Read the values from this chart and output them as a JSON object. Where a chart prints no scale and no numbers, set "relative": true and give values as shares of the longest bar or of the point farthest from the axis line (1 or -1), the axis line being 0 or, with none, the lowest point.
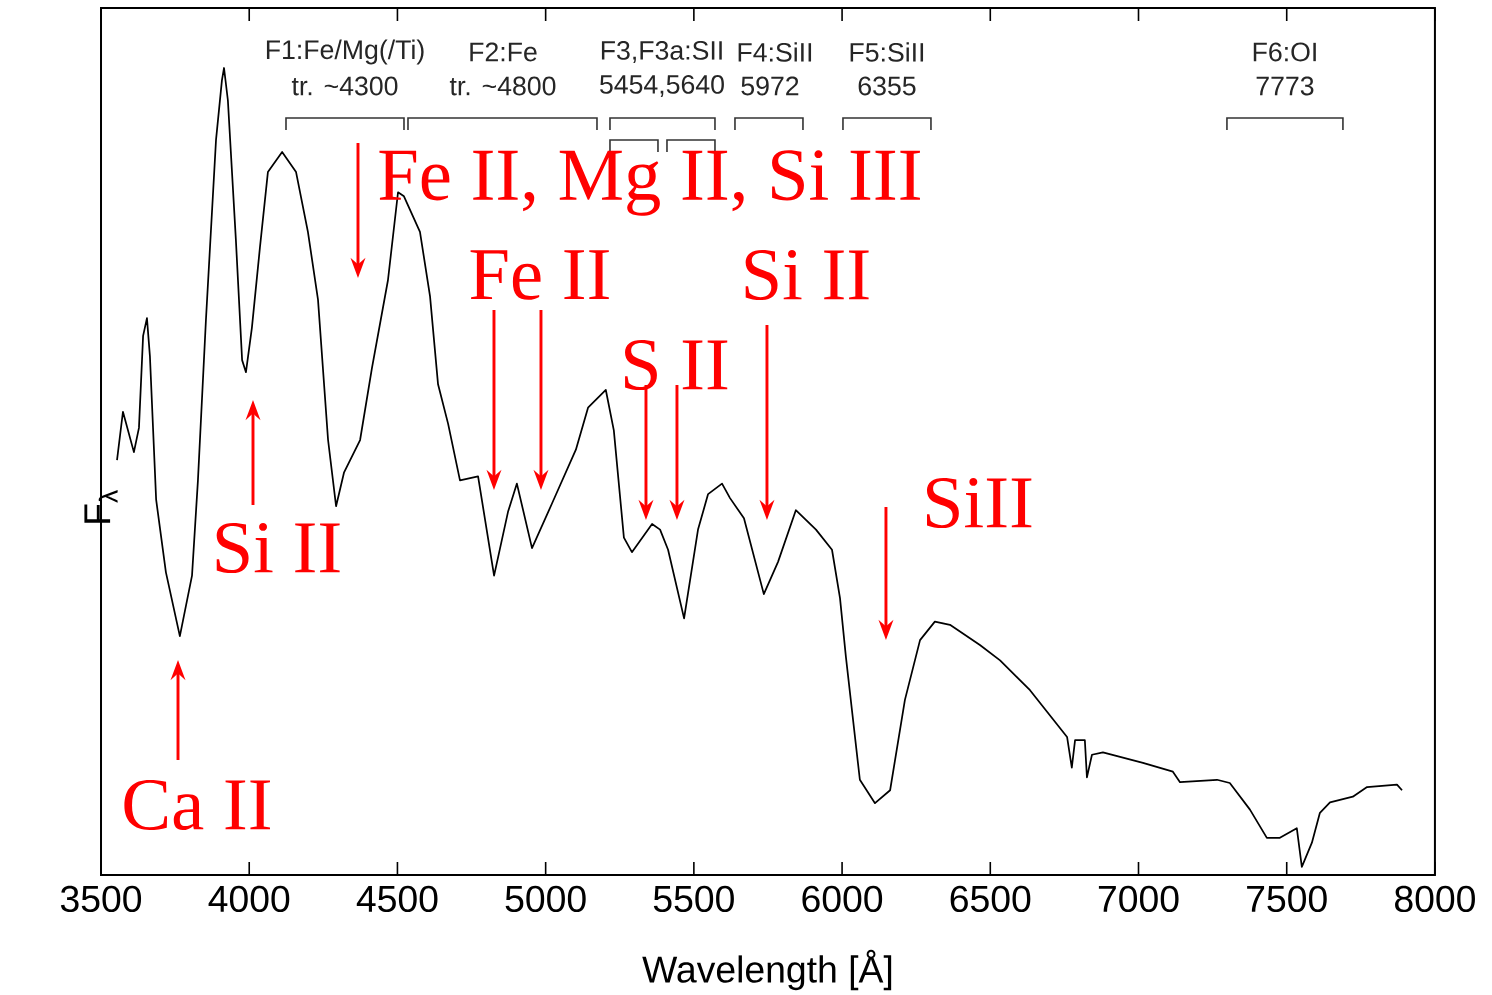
{
  "chart_data": {
    "type": "line",
    "relative": true,
    "xlabel": "Wavelength [Å]",
    "ylabel": "F$_{λ}$",
    "xlim": [
      3500,
      8000
    ],
    "xticks": [
      3500,
      4000,
      4500,
      5000,
      5500,
      6000,
      6500,
      7000,
      7500,
      8000
    ],
    "series": [
      {
        "color": "#000000",
        "x": [
          3554,
          3574,
          3611,
          3628,
          3642,
          3655,
          3665,
          3686,
          3719,
          3766,
          3807,
          3827,
          3854,
          3888,
          3908,
          3915,
          3928,
          3955,
          3976,
          3989,
          4009,
          4036,
          4063,
          4111,
          4158,
          4198,
          4232,
          4266,
          4293,
          4320,
          4374,
          4414,
          4468,
          4502,
          4522,
          4576,
          4610,
          4637,
          4671,
          4711,
          4772,
          4826,
          4873,
          4903,
          4954,
          5021,
          5102,
          5143,
          5203,
          5230,
          5264,
          5291,
          5359,
          5386,
          5413,
          5467,
          5514,
          5548,
          5595,
          5622,
          5669,
          5736,
          5784,
          5844,
          5912,
          5966,
          5993,
          6013,
          6060,
          6111,
          6162,
          6212,
          6263,
          6313,
          6364,
          6465,
          6533,
          6634,
          6759,
          6775,
          6786,
          6819,
          6826,
          6843,
          6880,
          7015,
          7116,
          7140,
          7265,
          7308,
          7376,
          7433,
          7477,
          7534,
          7551,
          7585,
          7612,
          7646,
          7723,
          7771,
          7872,
          7889
        ],
        "values": [
          0.514,
          0.574,
          0.524,
          0.554,
          0.668,
          0.69,
          0.643,
          0.465,
          0.375,
          0.296,
          0.371,
          0.489,
          0.688,
          0.911,
          0.985,
          1.0,
          0.96,
          0.787,
          0.638,
          0.623,
          0.678,
          0.777,
          0.871,
          0.896,
          0.871,
          0.797,
          0.713,
          0.539,
          0.457,
          0.499,
          0.539,
          0.628,
          0.737,
          0.846,
          0.841,
          0.797,
          0.717,
          0.608,
          0.559,
          0.489,
          0.494,
          0.371,
          0.45,
          0.485,
          0.405,
          0.46,
          0.527,
          0.579,
          0.601,
          0.551,
          0.418,
          0.4,
          0.435,
          0.428,
          0.403,
          0.318,
          0.428,
          0.472,
          0.485,
          0.467,
          0.442,
          0.348,
          0.388,
          0.452,
          0.428,
          0.403,
          0.343,
          0.27,
          0.118,
          0.089,
          0.105,
          0.217,
          0.291,
          0.314,
          0.31,
          0.285,
          0.266,
          0.229,
          0.171,
          0.133,
          0.167,
          0.167,
          0.121,
          0.149,
          0.152,
          0.139,
          0.128,
          0.115,
          0.118,
          0.114,
          0.081,
          0.046,
          0.046,
          0.058,
          0.01,
          0.04,
          0.077,
          0.09,
          0.097,
          0.109,
          0.112,
          0.105
        ]
      }
    ],
    "annotations": [
      "Ca II",
      "Si II",
      "Fe II, Mg II, Si III",
      "Fe II",
      "S II",
      "Si II",
      "SiII",
      "F1:Fe/Mg(/Ti)",
      "tr. ~4300",
      "F2:Fe",
      "tr. ~4800",
      "F3,F3a:SII",
      "5454,5640",
      "F4:SiII",
      "5972",
      "F5:SiII",
      "6355",
      "F6:OI",
      "7773"
    ]
  }
}
